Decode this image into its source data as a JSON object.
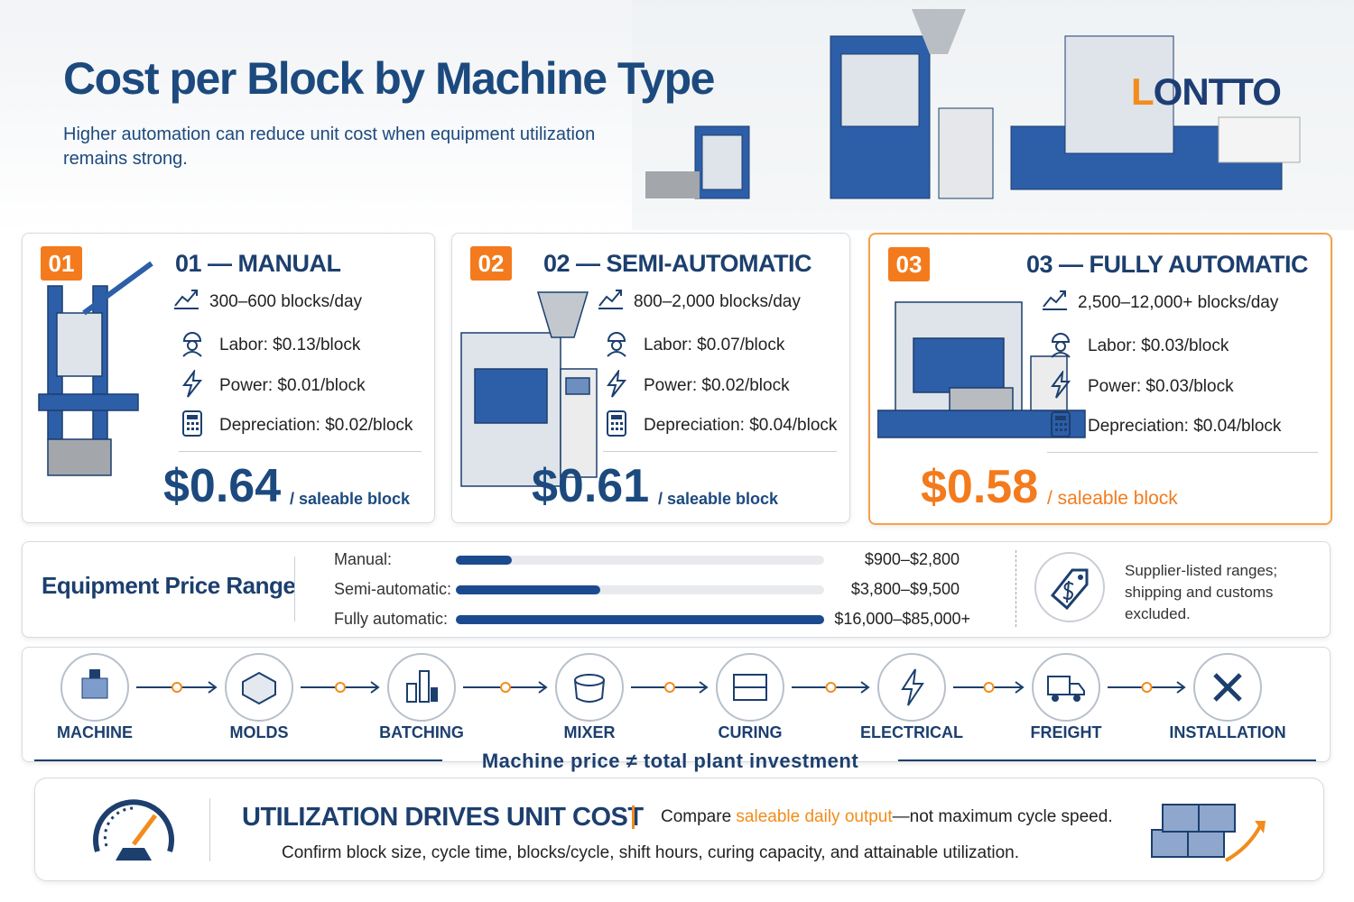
{
  "header": {
    "title": "Cost per Block by Machine Type",
    "subtitle": "Higher automation can reduce unit cost when equipment utilization remains strong.",
    "brand_first": "L",
    "brand_rest": "ONTTO"
  },
  "cards": [
    {
      "badge": "01",
      "title": "01 — MANUAL",
      "output": "300–600 blocks/day",
      "labor": "Labor: $0.13/block",
      "power": "Power: $0.01/block",
      "depreciation": "Depreciation: $0.02/block",
      "price": "$0.64",
      "unit": "/ saleable block"
    },
    {
      "badge": "02",
      "title": "02 — SEMI-AUTOMATIC",
      "output": "800–2,000 blocks/day",
      "labor": "Labor: $0.07/block",
      "power": "Power: $0.02/block",
      "depreciation": "Depreciation: $0.04/block",
      "price": "$0.61",
      "unit": "/ saleable block"
    },
    {
      "badge": "03",
      "title": "03 — FULLY AUTOMATIC",
      "output": "2,500–12,000+ blocks/day",
      "labor": "Labor: $0.03/block",
      "power": "Power: $0.03/block",
      "depreciation": "Depreciation: $0.04/block",
      "price": "$0.58",
      "unit": "/ saleable block"
    }
  ],
  "equipment": {
    "title": "Equipment Price Range",
    "rows": [
      {
        "label": "Manual:",
        "range": "$900–$2,800"
      },
      {
        "label": "Semi-automatic:",
        "range": "$3,800–$9,500"
      },
      {
        "label": "Fully automatic:",
        "range": "$16,000–$85,000+"
      }
    ],
    "note": "Supplier-listed ranges; shipping and customs excluded."
  },
  "process": {
    "steps": [
      "MACHINE",
      "MOLDS",
      "BATCHING",
      "MIXER",
      "CURING",
      "ELECTRICAL",
      "FREIGHT",
      "INSTALLATION"
    ],
    "caption": "Machine price ≠ total plant investment"
  },
  "footer": {
    "title": "UTILIZATION DRIVES UNIT COST",
    "compare_before": "Compare ",
    "compare_highlight": "saleable daily output",
    "compare_after": "—not maximum cycle speed.",
    "detail": "Confirm block size, cycle time, blocks/cycle, shift hours, curing capacity, and attainable utilization."
  }
}
